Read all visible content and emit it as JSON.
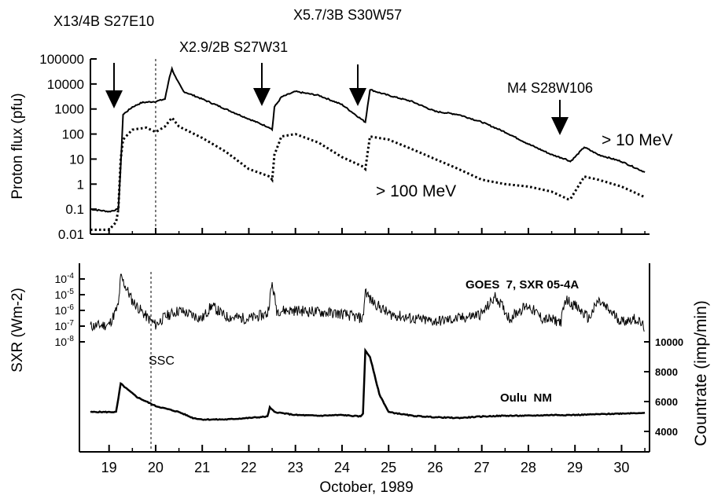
{
  "chart_data": [
    {
      "type": "line",
      "panel": "top",
      "ylabel": "Proton flux (pfu)",
      "yscale": "log",
      "ylim": [
        0.01,
        100000
      ],
      "ytick_labels": [
        "0.01",
        "0.1",
        "1",
        "10",
        "100",
        "1000",
        "10000",
        "100000"
      ],
      "xlim": [
        18.6,
        30.6
      ],
      "series": [
        {
          "name": "> 10 MeV",
          "style": "solid",
          "x": [
            18.6,
            19.0,
            19.2,
            19.25,
            19.3,
            19.5,
            19.7,
            20.0,
            20.2,
            20.3,
            20.35,
            20.45,
            20.6,
            21.0,
            21.5,
            22.0,
            22.45,
            22.5,
            22.55,
            22.7,
            23.0,
            23.5,
            24.0,
            24.45,
            24.5,
            24.6,
            24.8,
            25.0,
            25.5,
            26.0,
            26.5,
            27.0,
            27.5,
            28.0,
            28.5,
            28.8,
            28.9,
            29.0,
            29.2,
            29.5,
            30.0,
            30.5
          ],
          "y": [
            0.1,
            0.08,
            0.1,
            5,
            600,
            1200,
            1800,
            2000,
            2500,
            20000,
            40000,
            15000,
            5000,
            2500,
            1000,
            400,
            180,
            150,
            1200,
            3000,
            5000,
            3500,
            1500,
            350,
            300,
            6000,
            4500,
            3500,
            2000,
            800,
            600,
            300,
            120,
            40,
            15,
            10,
            8,
            12,
            30,
            15,
            8,
            3
          ]
        },
        {
          "name": "> 100 MeV",
          "style": "dotted",
          "x": [
            18.6,
            19.0,
            19.15,
            19.2,
            19.25,
            19.3,
            19.5,
            19.8,
            20.0,
            20.2,
            20.35,
            20.5,
            21.0,
            21.5,
            22.0,
            22.45,
            22.5,
            22.55,
            22.7,
            23.0,
            23.5,
            24.0,
            24.45,
            24.5,
            24.6,
            25.0,
            25.5,
            26.0,
            26.5,
            27.0,
            27.5,
            28.0,
            28.5,
            28.85,
            28.9,
            29.0,
            29.2,
            29.5,
            30.0,
            30.5
          ],
          "y": [
            0.015,
            0.015,
            0.03,
            0.1,
            10,
            60,
            150,
            180,
            120,
            200,
            450,
            200,
            70,
            20,
            4,
            2,
            1.5,
            15,
            80,
            100,
            45,
            12,
            5,
            4,
            80,
            60,
            25,
            10,
            4,
            1.5,
            1,
            0.8,
            0.5,
            0.25,
            0.25,
            0.5,
            2,
            1.5,
            0.8,
            0.3
          ]
        }
      ],
      "labels": {
        "series_10": "> 10 MeV",
        "series_100": "> 100 MeV"
      },
      "flare_annotations": [
        {
          "text": "X13/4B S27E10",
          "day": 19.2
        },
        {
          "text": "X2.9/2B S27W31",
          "day": 22.5
        },
        {
          "text": "X5.7/3B S30W57",
          "day": 24.5
        },
        {
          "text": "M4 S28W106",
          "day": 28.85
        }
      ],
      "event_line": {
        "day": 20.0
      }
    },
    {
      "type": "line",
      "panel": "bottom",
      "ylabel_left": "SXR (Wm-2)",
      "yscale_left": "log",
      "ylim_left": [
        1e-08,
        0.0001
      ],
      "ytick_labels_left": [
        "10-4",
        "10-5",
        "10-6",
        "10-7",
        "10-8"
      ],
      "ylabel_right": "Countrate (imp/min)",
      "ylim_right": [
        4000,
        10000
      ],
      "ytick_labels_right": [
        "10000",
        "8000",
        "6000",
        "4000"
      ],
      "xlabel": "October, 1989",
      "xtick_labels": [
        "19",
        "20",
        "21",
        "22",
        "23",
        "24",
        "25",
        "26",
        "27",
        "28",
        "29",
        "30"
      ],
      "xticks": [
        19,
        20,
        21,
        22,
        23,
        24,
        25,
        26,
        27,
        28,
        29,
        30
      ],
      "xlim": [
        18.6,
        30.6
      ],
      "series": [
        {
          "name": "GOES 7, SXR 05-4A",
          "label": "GOES  7, SXR 05-4A",
          "x": [
            18.6,
            19.0,
            19.2,
            19.25,
            19.5,
            19.8,
            20.0,
            20.2,
            20.5,
            21.0,
            21.2,
            21.5,
            22.0,
            22.4,
            22.5,
            22.6,
            23.0,
            23.5,
            24.0,
            24.45,
            24.5,
            24.6,
            25.0,
            25.5,
            26.0,
            26.5,
            27.0,
            27.3,
            27.6,
            27.8,
            28.0,
            28.3,
            28.7,
            28.8,
            29.0,
            29.3,
            29.5,
            30.0,
            30.3,
            30.5
          ],
          "y": [
            1e-07,
            1.2e-07,
            2e-06,
            0.00015,
            4e-06,
            4e-07,
            1.2e-07,
            4e-07,
            1e-06,
            3e-07,
            2e-06,
            4e-07,
            3e-07,
            6e-07,
            5e-05,
            1e-06,
            1e-06,
            8e-07,
            6e-07,
            3e-07,
            2e-05,
            5e-06,
            6e-07,
            3e-07,
            2e-07,
            3e-07,
            6e-07,
            8e-06,
            3e-07,
            1e-06,
            2e-06,
            3e-07,
            2e-07,
            5e-06,
            2e-06,
            3e-07,
            4e-06,
            2e-07,
            3e-07,
            8e-08
          ]
        },
        {
          "name": "Oulu  NM",
          "label": "Oulu  NM",
          "x": [
            18.6,
            19.0,
            19.15,
            19.2,
            19.25,
            19.4,
            19.6,
            20.0,
            20.5,
            20.8,
            21.0,
            21.5,
            22.0,
            22.4,
            22.45,
            22.55,
            23.0,
            23.5,
            24.0,
            24.4,
            24.45,
            24.5,
            24.6,
            24.8,
            25.0,
            25.5,
            26.0,
            26.5,
            27.0,
            27.5,
            28.0,
            28.5,
            29.0,
            29.5,
            30.0,
            30.5
          ],
          "y": [
            5300,
            5300,
            5300,
            6200,
            7200,
            6800,
            6300,
            5700,
            5300,
            4900,
            4800,
            4800,
            4900,
            5000,
            5600,
            5300,
            5100,
            5050,
            5100,
            5000,
            5200,
            9400,
            9000,
            6500,
            5300,
            5050,
            4950,
            4900,
            5000,
            5050,
            5050,
            5100,
            5100,
            5150,
            5200,
            5250
          ]
        }
      ],
      "event_line": {
        "day": 19.9,
        "label": "SSC"
      }
    }
  ]
}
